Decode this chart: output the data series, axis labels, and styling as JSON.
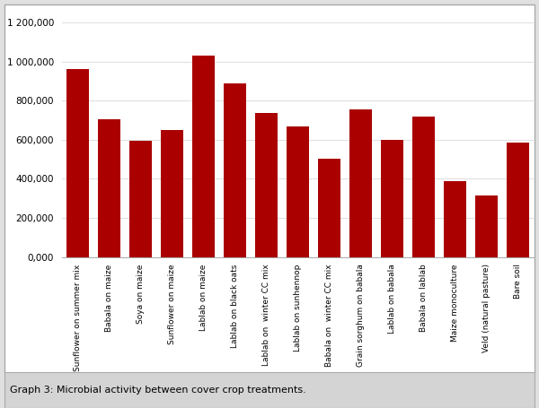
{
  "categories": [
    "Sunflower on summer mix",
    "Babala on maize",
    "Soya on maize",
    "Sunflower on maize",
    "Lablab on maize",
    "Lablab on black oats",
    "Lablab on  winter CC mix",
    "Lablab on sunhennop",
    "Babala on  winter CC mix",
    "Grain sorghum on babala",
    "Lablab on babala",
    "Babala on lablab",
    "Maize monoculture",
    "Veld (natural pasture)",
    "Bare soil"
  ],
  "values": [
    960000,
    705000,
    595000,
    650000,
    1030000,
    890000,
    735000,
    670000,
    505000,
    755000,
    600000,
    720000,
    390000,
    315000,
    585000
  ],
  "bar_color": "#aa0000",
  "ylim": [
    0,
    1200000
  ],
  "yticks": [
    0,
    200000,
    400000,
    600000,
    800000,
    1000000,
    1200000
  ],
  "ytick_labels": [
    "0,000",
    "200,000",
    "400,000",
    "600,000",
    "800,000",
    "1 000,000",
    "1 200,000"
  ],
  "caption": "Graph 3: Microbial activity between cover crop treatments.",
  "chart_bg": "#ffffff",
  "outer_bg": "#e0e0e0",
  "grid_color": "#e0e0e0",
  "border_color": "#aaaaaa",
  "caption_bg": "#d4d4d4"
}
